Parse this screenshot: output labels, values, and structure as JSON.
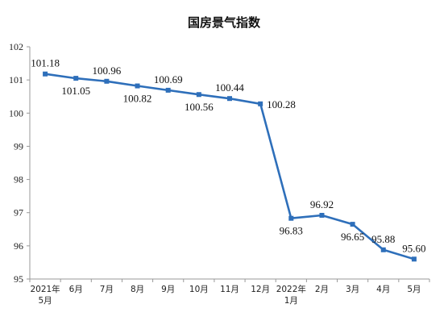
{
  "chart_data": {
    "type": "line",
    "title": "国房景气指数",
    "categories": [
      [
        "2021年",
        "5月"
      ],
      [
        "6月"
      ],
      [
        "7月"
      ],
      [
        "8月"
      ],
      [
        "9月"
      ],
      [
        "10月"
      ],
      [
        "11月"
      ],
      [
        "12月"
      ],
      [
        "2022年",
        "1月"
      ],
      [
        "2月"
      ],
      [
        "3月"
      ],
      [
        "4月"
      ],
      [
        "5月"
      ]
    ],
    "values": [
      101.18,
      101.05,
      100.96,
      100.82,
      100.69,
      100.56,
      100.44,
      100.28,
      96.83,
      96.92,
      96.65,
      95.88,
      95.6
    ],
    "data_labels": [
      "101.18",
      "101.05",
      "100.96",
      "100.82",
      "100.69",
      "100.56",
      "100.44",
      "100.28",
      "96.83",
      "96.92",
      "96.65",
      "95.88",
      "95.60"
    ],
    "label_positions": [
      "above",
      "below",
      "above",
      "below",
      "above",
      "below",
      "above",
      "right",
      "below",
      "above",
      "below",
      "above",
      "above"
    ],
    "ylim": [
      95,
      102
    ],
    "yticks": [
      "95",
      "96",
      "97",
      "98",
      "99",
      "100",
      "101",
      "102"
    ],
    "grid": false,
    "legend": "none",
    "color": "#2e6fba"
  }
}
